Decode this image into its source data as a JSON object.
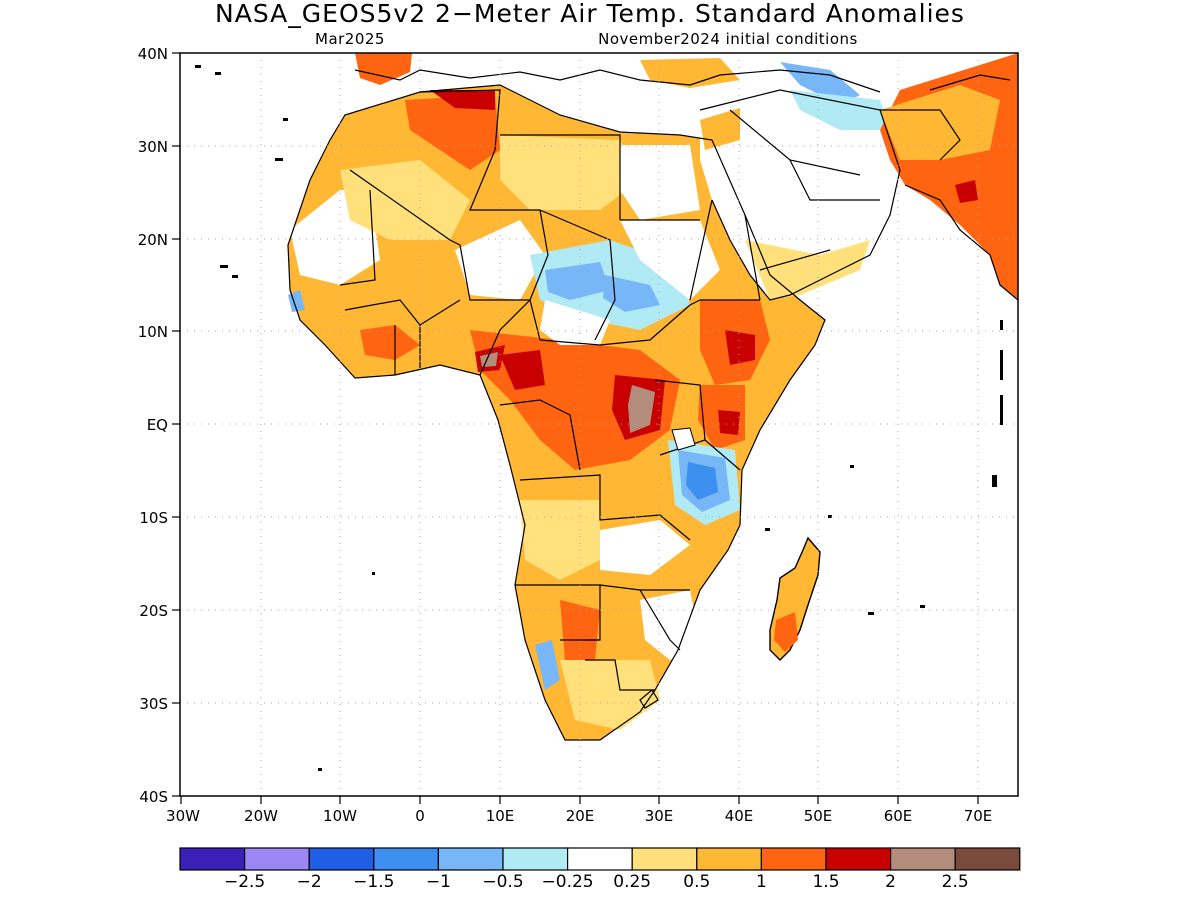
{
  "title": "NASA_GEOS5v2 2−Meter Air Temp. Standard Anomalies",
  "subtitle_left": "Mar2025",
  "subtitle_right": "November2024 initial conditions",
  "lat_ticks": [
    "40N",
    "30N",
    "20N",
    "10N",
    "EQ",
    "10S",
    "20S",
    "30S",
    "40S"
  ],
  "lon_ticks": [
    "30W",
    "20W",
    "10W",
    "0",
    "10E",
    "20E",
    "30E",
    "40E",
    "50E",
    "60E",
    "70E"
  ],
  "colorbar": {
    "colors": [
      "#3a1fb8",
      "#9b87f5",
      "#1f5fe8",
      "#3d8ff0",
      "#78b7f7",
      "#b0ebf5",
      "#ffffff",
      "#ffe07a",
      "#ffb734",
      "#ff6410",
      "#c80000",
      "#b48c7c",
      "#7a4a3a"
    ],
    "labels": [
      "−2.5",
      "−2",
      "−1.5",
      "−1",
      "−0.5",
      "−0.25",
      "0.25",
      "0.5",
      "1",
      "1.5",
      "2",
      "2.5"
    ]
  }
}
